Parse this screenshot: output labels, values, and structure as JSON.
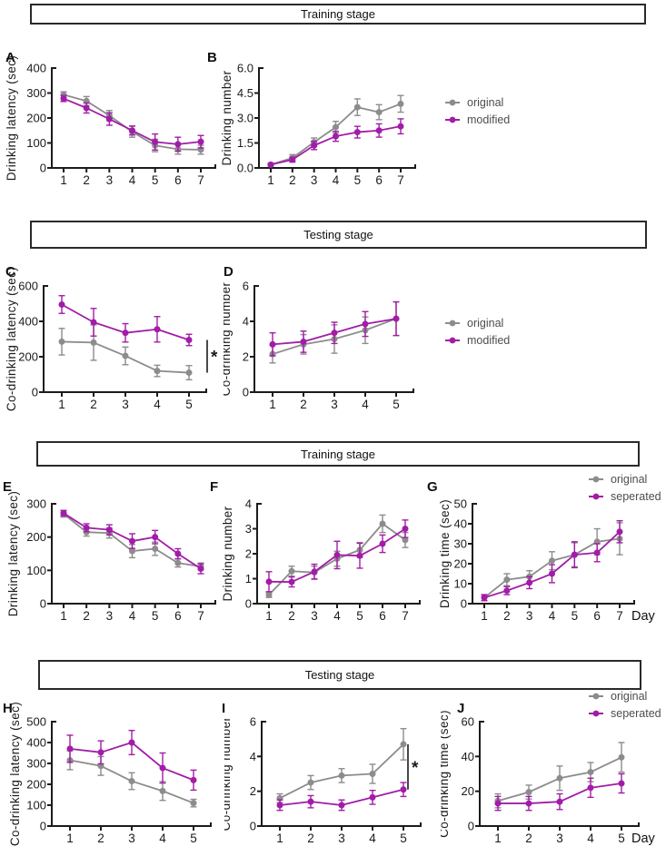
{
  "headers": [
    {
      "label": "Training stage"
    },
    {
      "label": "Testing stage"
    },
    {
      "label": "Training stage"
    },
    {
      "label": "Testing stage"
    }
  ],
  "colors": {
    "original": "#8C8C8C",
    "modified": "#A21CA8",
    "seperated": "#A21CA8",
    "axis": "#1b1b1b"
  },
  "legends": [
    {
      "entries": [
        {
          "label": "original",
          "color": "#8C8C8C"
        },
        {
          "label": "modified",
          "color": "#A21CA8"
        }
      ]
    },
    {
      "entries": [
        {
          "label": "original",
          "color": "#8C8C8C"
        },
        {
          "label": "modified",
          "color": "#A21CA8"
        }
      ]
    },
    {
      "entries": [
        {
          "label": "original",
          "color": "#8C8C8C"
        },
        {
          "label": "seperated",
          "color": "#A21CA8"
        }
      ]
    },
    {
      "entries": [
        {
          "label": "original",
          "color": "#8C8C8C"
        },
        {
          "label": "seperated",
          "color": "#A21CA8"
        }
      ]
    }
  ],
  "chart_data": [
    {
      "panel": "A",
      "type": "line",
      "ylabel": "Drinking latency (sec)",
      "xlabel": "",
      "x": [
        1,
        2,
        3,
        4,
        5,
        6,
        7
      ],
      "ylim": [
        0,
        400
      ],
      "yticks": [
        0,
        100,
        200,
        300,
        400
      ],
      "ytick_labels": [
        "0",
        "100",
        "200",
        "300",
        "400"
      ],
      "significance": "",
      "series": [
        {
          "name": "original",
          "color": "#8C8C8C",
          "values": [
            293,
            268,
            210,
            145,
            90,
            75,
            73
          ],
          "errors": [
            12,
            18,
            20,
            22,
            25,
            20,
            18
          ]
        },
        {
          "name": "modified",
          "color": "#A21CA8",
          "values": [
            278,
            240,
            196,
            150,
            104,
            95,
            105
          ],
          "errors": [
            12,
            20,
            25,
            18,
            32,
            28,
            25
          ]
        }
      ]
    },
    {
      "panel": "B",
      "type": "line",
      "ylabel": "Drinking number",
      "xlabel": "",
      "x": [
        1,
        2,
        3,
        4,
        5,
        6,
        7
      ],
      "ylim": [
        0,
        6
      ],
      "yticks": [
        0,
        1.5,
        3,
        4.5,
        6
      ],
      "ytick_labels": [
        "0.0",
        "1.5",
        "3.0",
        "4.5",
        "6.0"
      ],
      "significance": "",
      "series": [
        {
          "name": "original",
          "color": "#8C8C8C",
          "values": [
            0.2,
            0.6,
            1.55,
            2.45,
            3.65,
            3.35,
            3.85
          ],
          "errors": [
            0.08,
            0.2,
            0.25,
            0.35,
            0.5,
            0.45,
            0.5
          ]
        },
        {
          "name": "modified",
          "color": "#A21CA8",
          "values": [
            0.2,
            0.5,
            1.35,
            1.9,
            2.15,
            2.25,
            2.5
          ],
          "errors": [
            0.08,
            0.15,
            0.25,
            0.3,
            0.35,
            0.4,
            0.45
          ]
        }
      ]
    },
    {
      "panel": "C",
      "type": "line",
      "ylabel": "Co-drinking latency (sec)",
      "xlabel": "",
      "x": [
        1,
        2,
        3,
        4,
        5
      ],
      "ylim": [
        0,
        600
      ],
      "yticks": [
        0,
        200,
        400,
        600
      ],
      "ytick_labels": [
        "0",
        "200",
        "400",
        "600"
      ],
      "significance": "*",
      "series": [
        {
          "name": "original",
          "color": "#8C8C8C",
          "values": [
            285,
            280,
            205,
            120,
            110
          ],
          "errors": [
            75,
            100,
            50,
            32,
            40
          ]
        },
        {
          "name": "modified",
          "color": "#A21CA8",
          "values": [
            495,
            395,
            335,
            355,
            295
          ],
          "errors": [
            50,
            78,
            52,
            72,
            32
          ]
        }
      ]
    },
    {
      "panel": "D",
      "type": "line",
      "ylabel": "Co-drinking number",
      "xlabel": "",
      "x": [
        1,
        2,
        3,
        4,
        5
      ],
      "ylim": [
        0,
        6
      ],
      "yticks": [
        0,
        2,
        4,
        6
      ],
      "ytick_labels": [
        "0",
        "2",
        "4",
        "6"
      ],
      "significance": "",
      "series": [
        {
          "name": "original",
          "color": "#8C8C8C",
          "values": [
            2.15,
            2.7,
            3.0,
            3.5,
            4.15
          ],
          "errors": [
            0.5,
            0.55,
            0.8,
            0.75,
            0.95
          ]
        },
        {
          "name": "modified",
          "color": "#A21CA8",
          "values": [
            2.7,
            2.85,
            3.35,
            3.85,
            4.15
          ],
          "errors": [
            0.65,
            0.6,
            0.6,
            0.7,
            0.95
          ]
        }
      ]
    },
    {
      "panel": "E",
      "type": "line",
      "ylabel": "Drinking latency (sec)",
      "xlabel": "",
      "x": [
        1,
        2,
        3,
        4,
        5,
        6,
        7
      ],
      "ylim": [
        0,
        300
      ],
      "yticks": [
        0,
        100,
        200,
        300
      ],
      "ytick_labels": [
        "0",
        "100",
        "200",
        "300"
      ],
      "significance": "",
      "series": [
        {
          "name": "original",
          "color": "#8C8C8C",
          "values": [
            270,
            215,
            212,
            158,
            165,
            122,
            112
          ],
          "errors": [
            10,
            12,
            15,
            20,
            20,
            12,
            10
          ]
        },
        {
          "name": "seperated",
          "color": "#A21CA8",
          "values": [
            272,
            228,
            222,
            188,
            200,
            150,
            105
          ],
          "errors": [
            8,
            12,
            15,
            22,
            20,
            15,
            15
          ]
        }
      ]
    },
    {
      "panel": "F",
      "type": "line",
      "ylabel": "Drinking number",
      "xlabel": "",
      "x": [
        1,
        2,
        3,
        4,
        5,
        6,
        7
      ],
      "ylim": [
        0,
        4
      ],
      "yticks": [
        0,
        1,
        2,
        3,
        4
      ],
      "ytick_labels": [
        "0",
        "1",
        "2",
        "3",
        "4"
      ],
      "significance": "",
      "series": [
        {
          "name": "original",
          "color": "#8C8C8C",
          "values": [
            0.35,
            1.3,
            1.25,
            1.8,
            2.15,
            3.2,
            2.55
          ],
          "errors": [
            0.1,
            0.2,
            0.25,
            0.3,
            0.3,
            0.35,
            0.3
          ]
        },
        {
          "name": "seperated",
          "color": "#A21CA8",
          "values": [
            0.88,
            0.87,
            1.28,
            1.95,
            1.92,
            2.4,
            3.0
          ],
          "errors": [
            0.4,
            0.2,
            0.3,
            0.55,
            0.5,
            0.35,
            0.35
          ]
        }
      ]
    },
    {
      "panel": "G",
      "type": "line",
      "ylabel": "Drinking time (sec)",
      "xlabel": "Day",
      "x": [
        1,
        2,
        3,
        4,
        5,
        6,
        7
      ],
      "ylim": [
        0,
        50
      ],
      "yticks": [
        0,
        10,
        20,
        30,
        40,
        50
      ],
      "ytick_labels": [
        "0",
        "10",
        "20",
        "30",
        "40",
        "50"
      ],
      "significance": "",
      "series": [
        {
          "name": "original",
          "color": "#8C8C8C",
          "values": [
            3,
            12,
            13.5,
            21.5,
            24.5,
            31,
            32.5
          ],
          "errors": [
            1.5,
            3,
            3,
            4.5,
            6,
            6.5,
            8
          ]
        },
        {
          "name": "seperated",
          "color": "#A21CA8",
          "values": [
            3,
            6.5,
            10.5,
            15,
            24.5,
            25.5,
            36
          ],
          "errors": [
            1.5,
            2,
            3,
            4.5,
            6.5,
            4.5,
            5.5
          ]
        }
      ]
    },
    {
      "panel": "H",
      "type": "line",
      "ylabel": "Co-drinking latency (sec)",
      "xlabel": "",
      "x": [
        1,
        2,
        3,
        4,
        5
      ],
      "ylim": [
        0,
        500
      ],
      "yticks": [
        0,
        100,
        200,
        300,
        400,
        500
      ],
      "ytick_labels": [
        "0",
        "100",
        "200",
        "300",
        "400",
        "500"
      ],
      "significance": "",
      "series": [
        {
          "name": "original",
          "color": "#8C8C8C",
          "values": [
            315,
            288,
            215,
            168,
            110
          ],
          "errors": [
            45,
            45,
            40,
            45,
            18
          ]
        },
        {
          "name": "seperated",
          "color": "#A21CA8",
          "values": [
            370,
            353,
            400,
            278,
            220
          ],
          "errors": [
            65,
            55,
            58,
            72,
            48
          ]
        }
      ]
    },
    {
      "panel": "I",
      "type": "line",
      "ylabel": "Co-drinking number",
      "xlabel": "",
      "x": [
        1,
        2,
        3,
        4,
        5
      ],
      "ylim": [
        0,
        6
      ],
      "yticks": [
        0,
        2,
        4,
        6
      ],
      "ytick_labels": [
        "0",
        "2",
        "4",
        "6"
      ],
      "significance": "*",
      "series": [
        {
          "name": "original",
          "color": "#8C8C8C",
          "values": [
            1.6,
            2.5,
            2.9,
            3.0,
            4.7
          ],
          "errors": [
            0.25,
            0.4,
            0.4,
            0.55,
            0.9
          ]
        },
        {
          "name": "seperated",
          "color": "#A21CA8",
          "values": [
            1.2,
            1.4,
            1.2,
            1.65,
            2.1
          ],
          "errors": [
            0.3,
            0.35,
            0.3,
            0.4,
            0.4
          ]
        }
      ]
    },
    {
      "panel": "J",
      "type": "line",
      "ylabel": "Co-drinking time (sec)",
      "xlabel": "Day",
      "x": [
        1,
        2,
        3,
        4,
        5
      ],
      "ylim": [
        0,
        60
      ],
      "yticks": [
        0,
        20,
        40,
        60
      ],
      "ytick_labels": [
        "0",
        "20",
        "40",
        "60"
      ],
      "significance": "",
      "series": [
        {
          "name": "original",
          "color": "#8C8C8C",
          "values": [
            14.5,
            19.5,
            27.5,
            31,
            39.5
          ],
          "errors": [
            4,
            4,
            7,
            5.5,
            8.5
          ]
        },
        {
          "name": "seperated",
          "color": "#A21CA8",
          "values": [
            13,
            13,
            14,
            22,
            24.5
          ],
          "errors": [
            4,
            4,
            4.5,
            5.5,
            5.5
          ]
        }
      ]
    }
  ]
}
